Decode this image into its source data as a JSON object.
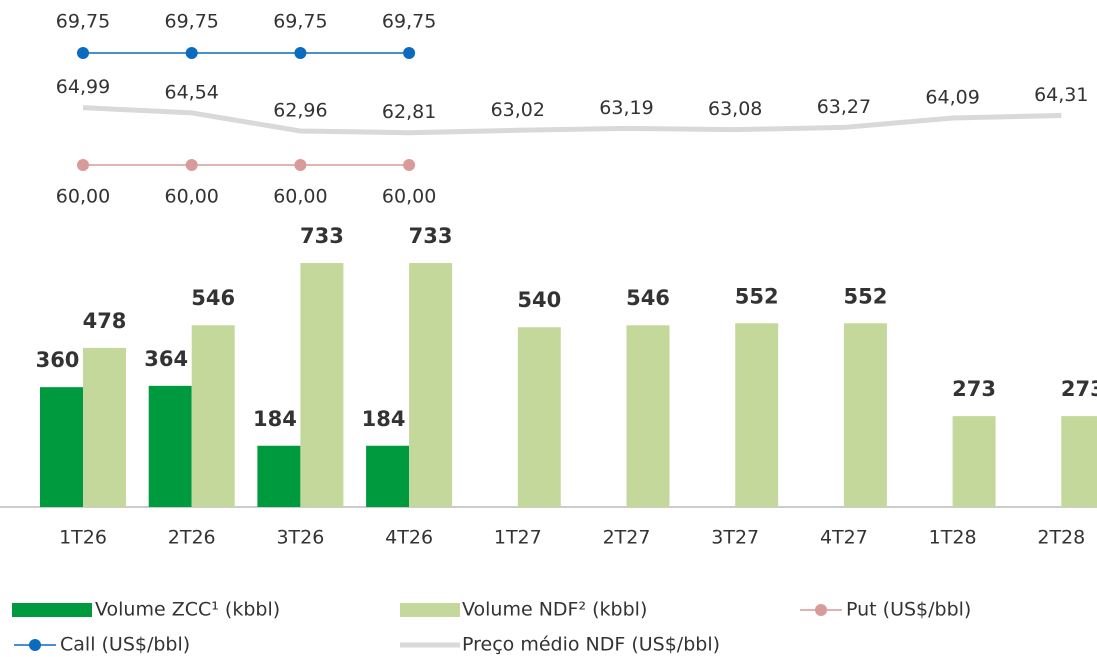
{
  "chart_data": {
    "type": "bar",
    "categories": [
      "1T26",
      "2T26",
      "3T26",
      "4T26",
      "1T27",
      "2T27",
      "3T27",
      "4T27",
      "1T28",
      "2T28"
    ],
    "series": [
      {
        "name": "Volume ZCC¹ (kbbl)",
        "type": "bar",
        "color": "#009a3e",
        "values": [
          360,
          364,
          184,
          184,
          null,
          null,
          null,
          null,
          null,
          null
        ]
      },
      {
        "name": "Volume NDF² (kbbl)",
        "type": "bar",
        "color": "#c5d89b",
        "values": [
          478,
          546,
          733,
          733,
          540,
          546,
          552,
          552,
          273,
          273
        ]
      },
      {
        "name": "Put (US$/bbl)",
        "type": "line",
        "color": "#d99a9a",
        "values": [
          60.0,
          60.0,
          60.0,
          60.0,
          null,
          null,
          null,
          null,
          null,
          null
        ],
        "value_labels": [
          "60,00",
          "60,00",
          "60,00",
          "60,00",
          null,
          null,
          null,
          null,
          null,
          null
        ]
      },
      {
        "name": "Call (US$/bbl)",
        "type": "line",
        "color": "#0b6bbf",
        "values": [
          69.75,
          69.75,
          69.75,
          69.75,
          null,
          null,
          null,
          null,
          null,
          null
        ],
        "value_labels": [
          "69,75",
          "69,75",
          "69,75",
          "69,75",
          null,
          null,
          null,
          null,
          null,
          null
        ]
      },
      {
        "name": "Preço médio NDF (US$/bbl)",
        "type": "line",
        "color": "#d9d9d9",
        "values": [
          64.99,
          64.54,
          62.96,
          62.81,
          63.02,
          63.19,
          63.08,
          63.27,
          64.09,
          64.31
        ],
        "value_labels": [
          "64,99",
          "64,54",
          "62,96",
          "62,81",
          "63,02",
          "63,19",
          "63,08",
          "63,27",
          "64,09",
          "64,31"
        ]
      }
    ]
  }
}
